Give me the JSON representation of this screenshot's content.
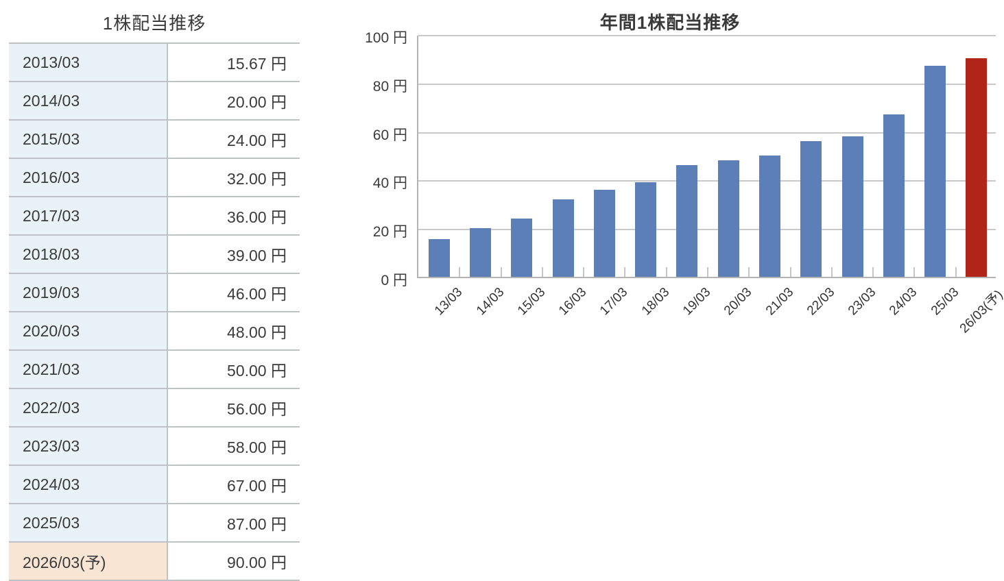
{
  "table": {
    "title": "1株配当推移",
    "rows": [
      {
        "period": "2013/03",
        "value": "15.67 円",
        "forecast": false
      },
      {
        "period": "2014/03",
        "value": "20.00 円",
        "forecast": false
      },
      {
        "period": "2015/03",
        "value": "24.00 円",
        "forecast": false
      },
      {
        "period": "2016/03",
        "value": "32.00 円",
        "forecast": false
      },
      {
        "period": "2017/03",
        "value": "36.00 円",
        "forecast": false
      },
      {
        "period": "2018/03",
        "value": "39.00 円",
        "forecast": false
      },
      {
        "period": "2019/03",
        "value": "46.00 円",
        "forecast": false
      },
      {
        "period": "2020/03",
        "value": "48.00 円",
        "forecast": false
      },
      {
        "period": "2021/03",
        "value": "50.00 円",
        "forecast": false
      },
      {
        "period": "2022/03",
        "value": "56.00 円",
        "forecast": false
      },
      {
        "period": "2023/03",
        "value": "58.00 円",
        "forecast": false
      },
      {
        "period": "2024/03",
        "value": "67.00 円",
        "forecast": false
      },
      {
        "period": "2025/03",
        "value": "87.00 円",
        "forecast": false
      },
      {
        "period": "2026/03(予)",
        "value": "90.00 円",
        "forecast": true
      }
    ]
  },
  "chart_data": {
    "type": "bar",
    "title": "年間1株配当推移",
    "categories": [
      "13/03",
      "14/03",
      "15/03",
      "16/03",
      "17/03",
      "18/03",
      "19/03",
      "20/03",
      "21/03",
      "22/03",
      "23/03",
      "24/03",
      "25/03",
      "26/03(予)"
    ],
    "values": [
      15.67,
      20.0,
      24.0,
      32.0,
      36.0,
      39.0,
      46.0,
      48.0,
      50.0,
      56.0,
      58.0,
      67.0,
      87.0,
      90.0
    ],
    "unit": "円",
    "ylim": [
      0,
      100
    ],
    "ytick_step": 20,
    "ytick_labels": [
      "0 円",
      "20 円",
      "40 円",
      "60 円",
      "80 円",
      "100 円"
    ],
    "grid": true,
    "legend_position": "none",
    "bar_color": "#5c7fb7",
    "forecast_index": 13,
    "forecast_bar_color": "#b02517"
  },
  "colors": {
    "period_cell_bg": "#e9f3f7",
    "forecast_cell_bg": "#f9e5d3",
    "table_border": "#bdc2c5",
    "axis": "#b4b4b4",
    "gridline": "#c9c9c9",
    "text": "#3b3b3b",
    "bar_blue": "#5c7fb7",
    "bar_red": "#b02517"
  }
}
